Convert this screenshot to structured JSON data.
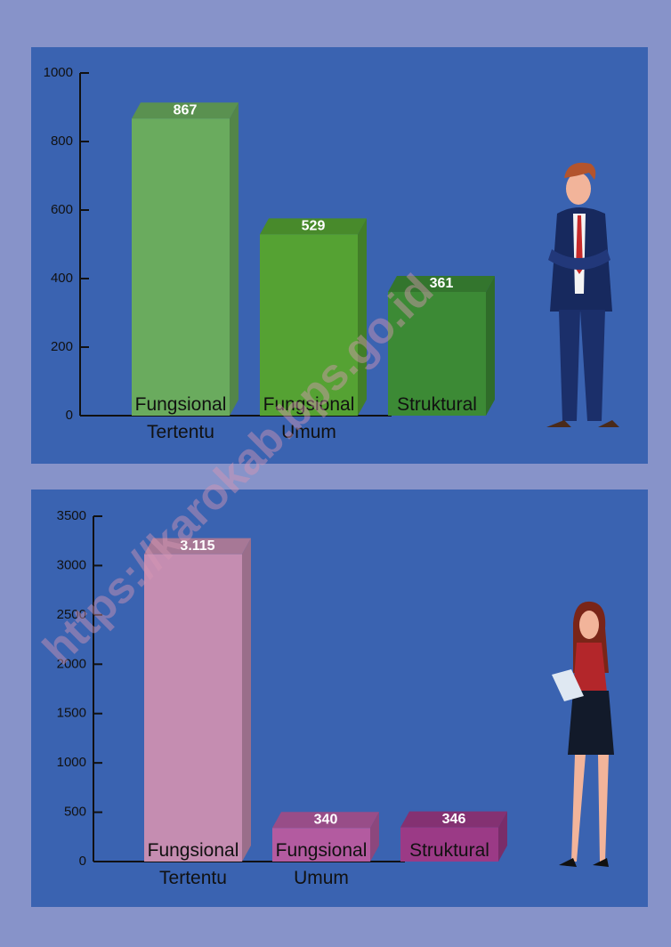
{
  "chart_data": [
    {
      "type": "bar",
      "categories": [
        "Fungsional Tertentu",
        "Fungsional Umum",
        "Struktural"
      ],
      "values": [
        867,
        529,
        361
      ],
      "colors": [
        "#6aab5e",
        "#55a233",
        "#3c8a35"
      ],
      "ylim": [
        0,
        1000
      ],
      "yticks": [
        0,
        200,
        400,
        600,
        800,
        1000
      ]
    },
    {
      "type": "bar",
      "categories": [
        "Fungsional Tertentu",
        "Fungsional Umum",
        "Struktural"
      ],
      "values": [
        3115,
        340,
        346
      ],
      "value_labels": [
        "3.115",
        "340",
        "346"
      ],
      "colors": [
        "#c58db1",
        "#b35ba0",
        "#9b3a86"
      ],
      "ylim": [
        0,
        3500
      ],
      "yticks": [
        0,
        500,
        1000,
        1500,
        2000,
        2500,
        3000,
        3500
      ]
    }
  ],
  "watermark": "https://karokab.bps.go.id"
}
